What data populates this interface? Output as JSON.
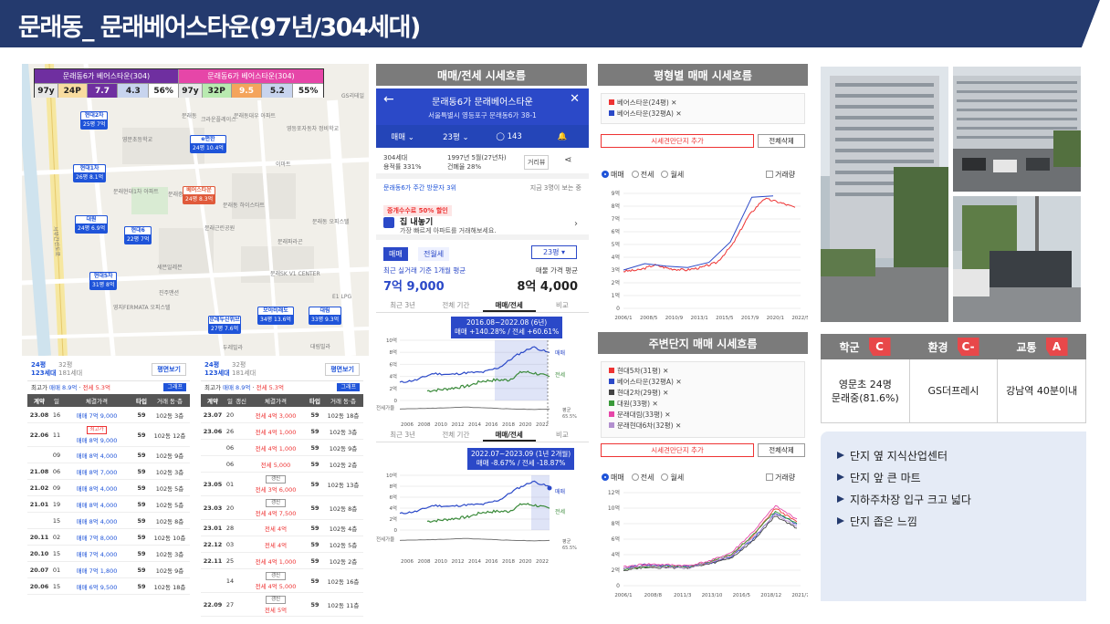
{
  "header": {
    "title": "문래동_ 문래베어스타운(97년/304세대)"
  },
  "map": {
    "legend": {
      "left_name": "문래동6가 베어스타운(304)",
      "right_name": "문래동6가 베어스타운(304)",
      "left": [
        "97y",
        "24P",
        "7.7",
        "4.3",
        "56%"
      ],
      "right": [
        "97y",
        "32P",
        "9.5",
        "5.2",
        "55%"
      ]
    },
    "labels": [
      "문래동",
      "크라운플레이스",
      "문래동대우 아파트",
      "영등포자동차 정비학교",
      "GS리테일",
      "영문초등학교",
      "문래현대1차 아파트",
      "문래중학교",
      "이마트",
      "문래동 하이스타트",
      "문래근린공원",
      "문래동 오피스텔",
      "문래파라곤",
      "문래SK V1 CENTER",
      "세븐일레븐",
      "진주맨션",
      "영지FERMATA 오피스텔",
      "서부간선도로",
      "두레빌라",
      "대림빌라",
      "E1 LPG"
    ],
    "pins": [
      {
        "name": "현대2차",
        "info": "25평 7억"
      },
      {
        "name": "e편한",
        "info": "24평 10.4억"
      },
      {
        "name": "현대1차",
        "info": "26평 8.1억"
      },
      {
        "name": "베어스타운",
        "info": "24평 8.3억"
      },
      {
        "name": "대원",
        "info": "24평 6.9억"
      },
      {
        "name": "현대6",
        "info": "22평 7억"
      },
      {
        "name": "현대5차",
        "info": "31평 8억"
      },
      {
        "name": "모아미래도",
        "info": "34평 13.6억"
      },
      {
        "name": "대림",
        "info": "33평 9.3억"
      },
      {
        "name": "문래두산위브",
        "info": "27평 7.6억"
      }
    ]
  },
  "tx_left": {
    "size_main": "24평",
    "households": "123세대",
    "size_alt": "32평",
    "households_alt": "181세대",
    "button": "평면보기",
    "info_label": "최고가",
    "info_sale": "매매 8.9억",
    "info_rent": "전세 5.3억",
    "graph": "그래프",
    "headers": [
      "계약",
      "일",
      "체결가격",
      "타입",
      "거래 동·층"
    ],
    "rows": [
      {
        "date": "23.08",
        "day": "16",
        "tag": "",
        "price": "매매 7억 9,000",
        "type": "59",
        "floor": "102동 3층"
      },
      {
        "date": "22.06",
        "day": "11",
        "tag": "최고가",
        "price": "매매 8억 9,000",
        "type": "59",
        "floor": "102동 12층"
      },
      {
        "date": "",
        "day": "09",
        "tag": "",
        "price": "매매 8억 4,000",
        "type": "59",
        "floor": "102동 9층"
      },
      {
        "date": "21.08",
        "day": "06",
        "tag": "",
        "price": "매매 8억 7,000",
        "type": "59",
        "floor": "102동 3층"
      },
      {
        "date": "21.02",
        "day": "09",
        "tag": "",
        "price": "매매 8억 4,000",
        "type": "59",
        "floor": "102동 5층"
      },
      {
        "date": "21.01",
        "day": "19",
        "tag": "",
        "price": "매매 8억 4,000",
        "type": "59",
        "floor": "102동 5층"
      },
      {
        "date": "",
        "day": "15",
        "tag": "",
        "price": "매매 8억 4,000",
        "type": "59",
        "floor": "102동 8층"
      },
      {
        "date": "20.11",
        "day": "02",
        "tag": "",
        "price": "매매 7억 8,000",
        "type": "59",
        "floor": "102동 10층"
      },
      {
        "date": "20.10",
        "day": "15",
        "tag": "",
        "price": "매매 7억 4,000",
        "type": "59",
        "floor": "102동 3층"
      },
      {
        "date": "20.07",
        "day": "01",
        "tag": "",
        "price": "매매 7억 1,800",
        "type": "59",
        "floor": "102동 9층"
      },
      {
        "date": "20.06",
        "day": "15",
        "tag": "",
        "price": "매매 6억 9,500",
        "type": "59",
        "floor": "102동 18층"
      }
    ]
  },
  "tx_right": {
    "size_main": "24평",
    "households": "123세대",
    "size_alt": "32평",
    "households_alt": "181세대",
    "button": "평면보기",
    "info_label": "최고가",
    "info_sale": "매매 8.9억",
    "info_rent": "전세 5.3억",
    "graph": "그래프",
    "headers": [
      "계약",
      "일",
      "갱신",
      "체결가격",
      "타입",
      "거래 동·층"
    ],
    "rows": [
      {
        "date": "23.07",
        "day": "20",
        "tag": "",
        "price": "전세 4억 3,000",
        "type": "59",
        "floor": "102동 18층"
      },
      {
        "date": "23.06",
        "day": "26",
        "tag": "",
        "price": "전세 4억 1,000",
        "type": "59",
        "floor": "102동 3층"
      },
      {
        "date": "",
        "day": "06",
        "tag": "",
        "price": "전세 4억 1,000",
        "type": "59",
        "floor": "102동 9층"
      },
      {
        "date": "",
        "day": "06",
        "tag": "",
        "price": "전세 5,000",
        "type": "59",
        "floor": "102동 2층"
      },
      {
        "date": "23.05",
        "day": "01",
        "tag": "갱신",
        "price": "전세 3억 6,000",
        "type": "59",
        "floor": "102동 13층"
      },
      {
        "date": "23.03",
        "day": "20",
        "tag": "갱신",
        "price": "전세 4억 7,500",
        "type": "59",
        "floor": "102동 8층"
      },
      {
        "date": "23.01",
        "day": "28",
        "tag": "",
        "price": "전세 4억",
        "type": "59",
        "floor": "102동 4층"
      },
      {
        "date": "22.12",
        "day": "03",
        "tag": "",
        "price": "전세 4억",
        "type": "59",
        "floor": "102동 5층"
      },
      {
        "date": "22.11",
        "day": "25",
        "tag": "",
        "price": "전세 4억 1,000",
        "type": "59",
        "floor": "102동 2층"
      },
      {
        "date": "",
        "day": "14",
        "tag": "갱신",
        "price": "전세 4억 5,000",
        "type": "59",
        "floor": "102동 16층"
      },
      {
        "date": "22.09",
        "day": "27",
        "tag": "갱신",
        "price": "전세 5억",
        "type": "59",
        "floor": "102동 11층"
      }
    ]
  },
  "sections": {
    "trend": "매매/전세 시세흐름",
    "by_size": "평형별 매매 시세흐름",
    "nearby": "주변단지 매매 시세흐름"
  },
  "app": {
    "title": "문래동6가 문래베어스타운",
    "address": "서울특별시 영등포구 문래동6가 38-1",
    "filter": [
      "매매",
      "23평",
      "143"
    ],
    "meta_left": [
      "304세대",
      "용적률 331%"
    ],
    "meta_right": [
      "1997년 5월(27년차)",
      "건폐율 28%"
    ],
    "view_btn": "거리뷰",
    "rank": "문래동6가 주간 방문자 3위",
    "rank_right": "지금 3명이 보는 중",
    "promo": "중개수수료 50% 할인",
    "sell_title": "집 내놓기",
    "sell_sub": "가장 빠르게 아파트를 거래해보세요.",
    "tab_on": "매매",
    "tab_off": "전월세",
    "size": "23평",
    "price_label": "최근 실거래 기준 1개월 평균",
    "price_value": "7억 9,000",
    "ask_label": "매물 가격 평균",
    "ask_value": "8억 4,000",
    "subtabs": [
      "최근 3년",
      "전체 기간",
      "매매/전세",
      "비교"
    ],
    "bubble1_title": "2016.08~2022.08 (6년)",
    "bubble1_body": "매매 +140.28% / 전세 +60.61%",
    "bubble2_title": "2022.07~2023.09 (1년 2개월)",
    "bubble2_body": "매매 -8.67% / 전세 -18.87%",
    "chart1_right_labels": [
      "매매",
      "전세"
    ],
    "chart1_gap": [
      "평균",
      "65.5%"
    ],
    "chart1_ticks_x": [
      "2006",
      "2008",
      "2010",
      "2012",
      "2014",
      "2016",
      "2018",
      "2020",
      "2022"
    ],
    "chart1_ticks_y": [
      "10억",
      "8억",
      "6억",
      "4억",
      "2억",
      "0"
    ],
    "chart1_gap_label": "전세가율",
    "chart2_ticks_y": [
      "10억",
      "8억",
      "6억",
      "4억",
      "2억",
      "0"
    ]
  },
  "size_chart": {
    "legend": [
      "베어스타운(24평)",
      "베어스타운(32평A)"
    ],
    "add_btn": "시세견만단지 추가",
    "del_btn": "전체삭제",
    "radios": [
      "매매",
      "전세",
      "월세"
    ],
    "checkbox": "거래량",
    "ticks_x": [
      "2006/1",
      "2008/5",
      "2010/9",
      "2013/1",
      "2015/5",
      "2017/9",
      "2020/1",
      "2022/5"
    ],
    "ticks_y": [
      "9억",
      "8억",
      "7억",
      "6억",
      "5억",
      "4억",
      "3억",
      "2억",
      "1억",
      "0"
    ]
  },
  "nearby_chart": {
    "legend": [
      "현대5차(31평)",
      "베어스타운(32평A)",
      "현대2차(29평)",
      "대원(33평)",
      "문래대림(33평)",
      "문래현대6차(32평)"
    ],
    "add_btn": "시세견만단지 추가",
    "del_btn": "전체삭제",
    "radios": [
      "매매",
      "전세",
      "월세"
    ],
    "checkbox": "거래량",
    "ticks_x": [
      "2006/1",
      "2008/8",
      "2011/3",
      "2013/10",
      "2016/5",
      "2018/12",
      "2021/7"
    ],
    "ticks_y": [
      "12억",
      "10억",
      "8억",
      "6억",
      "4억",
      "2억",
      "0"
    ]
  },
  "rating": {
    "categories": [
      {
        "label": "학군",
        "grade": "C",
        "value": "영문초 24명\n문래중(81.6%)"
      },
      {
        "label": "환경",
        "grade": "C-",
        "value": "GS더프레시"
      },
      {
        "label": "교통",
        "grade": "A",
        "value": "강남역 40분이내"
      }
    ]
  },
  "notes": [
    "단지 옆 지식산업센터",
    "단지 앞 큰 마트",
    "지하주차장 입구 크고 넓다",
    "단지 좁은 느낌"
  ],
  "colors": {
    "header_bg": "#243a6e",
    "accent_blue": "#2b49c8",
    "sale_blue": "#1f54d9",
    "rent_green": "#3a8a3a",
    "grade_red": "#e8484a",
    "legend_purple": "#6f2fa0",
    "legend_pink": "#e646a8"
  }
}
